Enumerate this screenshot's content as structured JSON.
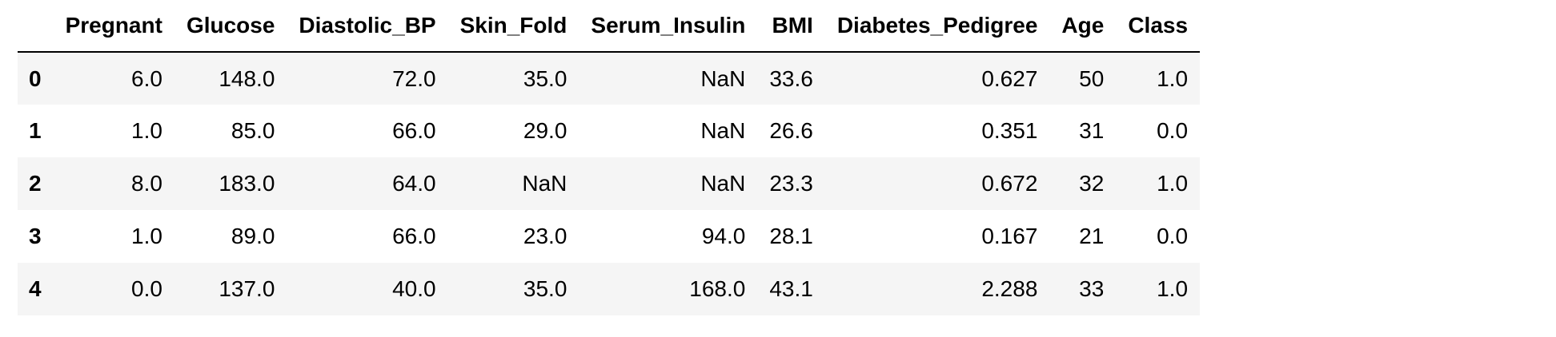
{
  "table": {
    "index_header": "",
    "columns": [
      "Pregnant",
      "Glucose",
      "Diastolic_BP",
      "Skin_Fold",
      "Serum_Insulin",
      "BMI",
      "Diabetes_Pedigree",
      "Age",
      "Class"
    ],
    "rows": [
      {
        "index": "0",
        "cells": [
          "6.0",
          "148.0",
          "72.0",
          "35.0",
          "NaN",
          "33.6",
          "0.627",
          "50",
          "1.0"
        ]
      },
      {
        "index": "1",
        "cells": [
          "1.0",
          "85.0",
          "66.0",
          "29.0",
          "NaN",
          "26.6",
          "0.351",
          "31",
          "0.0"
        ]
      },
      {
        "index": "2",
        "cells": [
          "8.0",
          "183.0",
          "64.0",
          "NaN",
          "NaN",
          "23.3",
          "0.672",
          "32",
          "1.0"
        ]
      },
      {
        "index": "3",
        "cells": [
          "1.0",
          "89.0",
          "66.0",
          "23.0",
          "94.0",
          "28.1",
          "0.167",
          "21",
          "0.0"
        ]
      },
      {
        "index": "4",
        "cells": [
          "0.0",
          "137.0",
          "40.0",
          "35.0",
          "168.0",
          "43.1",
          "2.288",
          "33",
          "1.0"
        ]
      }
    ]
  }
}
